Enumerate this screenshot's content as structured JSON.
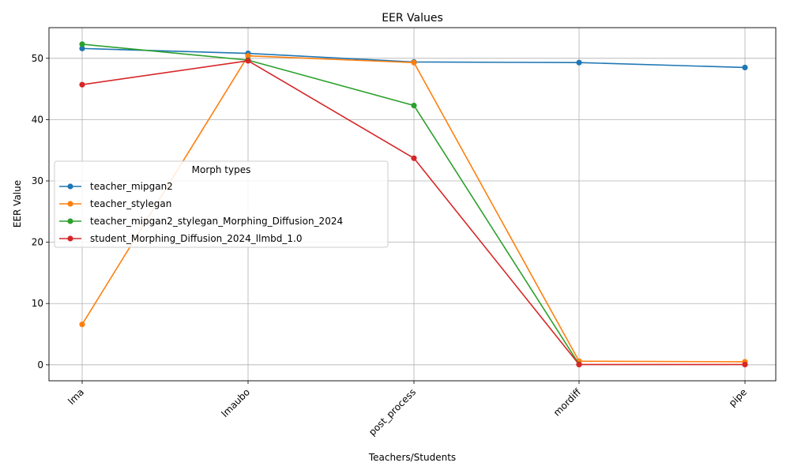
{
  "chart_data": {
    "type": "line",
    "title": "EER Values",
    "xlabel": "Teachers/Students",
    "ylabel": "EER Value",
    "categories": [
      "lma",
      "lmaubo",
      "post_process",
      "mordiff",
      "pipe"
    ],
    "ylim": [
      -2.6,
      55
    ],
    "yticks": [
      0,
      10,
      20,
      30,
      40,
      50
    ],
    "grid": true,
    "legend": {
      "title": "Morph types",
      "placement": "center-left"
    },
    "series": [
      {
        "name": "teacher_mipgan2",
        "color": "#1f77b4",
        "values": [
          51.6,
          50.8,
          49.4,
          49.3,
          48.5
        ]
      },
      {
        "name": "teacher_stylegan",
        "color": "#ff7f0e",
        "values": [
          6.6,
          50.4,
          49.3,
          0.6,
          0.5
        ]
      },
      {
        "name": "teacher_mipgan2_stylegan_Morphing_Diffusion_2024",
        "color": "#2ca02c",
        "values": [
          52.3,
          49.7,
          42.3,
          0.1,
          null
        ]
      },
      {
        "name": "student_Morphing_Diffusion_2024_llmbd_1.0",
        "color": "#d62728",
        "values": [
          45.7,
          49.6,
          33.7,
          0.05,
          0.05
        ]
      }
    ]
  }
}
